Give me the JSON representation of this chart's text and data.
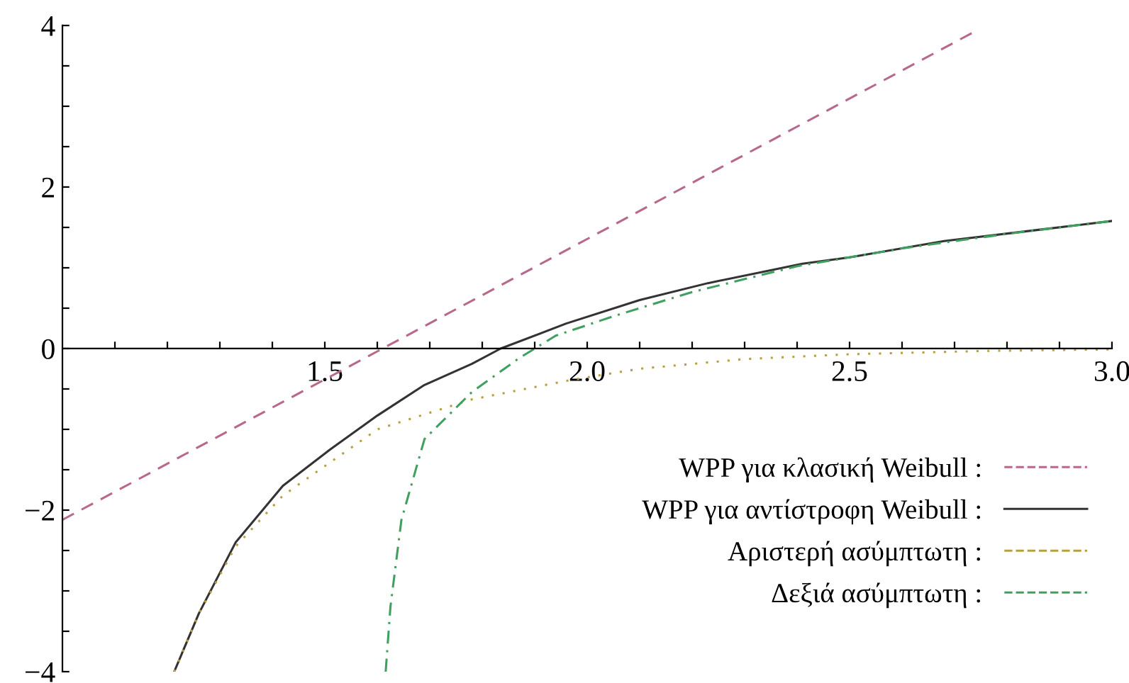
{
  "chart_data": {
    "type": "line",
    "xlim": [
      1,
      3
    ],
    "ylim": [
      -4,
      4
    ],
    "xticks": [
      {
        "value": 1.1,
        "label": null
      },
      {
        "value": 1.2,
        "label": null
      },
      {
        "value": 1.3,
        "label": null
      },
      {
        "value": 1.4,
        "label": null
      },
      {
        "value": 1.5,
        "label": "1.5"
      },
      {
        "value": 1.6,
        "label": null
      },
      {
        "value": 1.7,
        "label": null
      },
      {
        "value": 1.8,
        "label": null
      },
      {
        "value": 1.9,
        "label": null
      },
      {
        "value": 2.0,
        "label": "2.0"
      },
      {
        "value": 2.1,
        "label": null
      },
      {
        "value": 2.2,
        "label": null
      },
      {
        "value": 2.3,
        "label": null
      },
      {
        "value": 2.4,
        "label": null
      },
      {
        "value": 2.5,
        "label": "2.5"
      },
      {
        "value": 2.6,
        "label": null
      },
      {
        "value": 2.7,
        "label": null
      },
      {
        "value": 2.8,
        "label": null
      },
      {
        "value": 2.9,
        "label": null
      },
      {
        "value": 3.0,
        "label": "3.0"
      }
    ],
    "yticks": [
      {
        "value": -4,
        "label": "−4"
      },
      {
        "value": -3.5,
        "label": null
      },
      {
        "value": -3,
        "label": null
      },
      {
        "value": -2.5,
        "label": null
      },
      {
        "value": -2,
        "label": "−2"
      },
      {
        "value": -1.5,
        "label": null
      },
      {
        "value": -1,
        "label": null
      },
      {
        "value": -0.5,
        "label": null
      },
      0,
      {
        "value": 0.5,
        "label": null
      },
      {
        "value": 1,
        "label": null
      },
      {
        "value": 1.5,
        "label": null
      },
      2,
      {
        "value": 2.5,
        "label": null
      },
      {
        "value": 3,
        "label": null
      },
      {
        "value": 3.5,
        "label": null
      },
      4
    ],
    "grid": false,
    "legend": "bottom right",
    "marker": "none",
    "series": [
      {
        "name": "WPP για κλασική Weibull :",
        "color": "#b8688c",
        "line_style": "dashed",
        "x": [
          1.0,
          1.61,
          2.74
        ],
        "values": [
          -2.12,
          0,
          3.93
        ]
      },
      {
        "name": "WPP για αντίστροφη Weibull :",
        "color": "#333333",
        "line_style": "solid",
        "x": [
          1.213,
          1.26,
          1.33,
          1.42,
          1.51,
          1.6,
          1.69,
          1.78,
          1.835,
          1.96,
          2.1,
          2.23,
          2.41,
          2.5,
          2.68,
          2.86,
          3.0
        ],
        "values": [
          -4,
          -3.28,
          -2.4,
          -1.7,
          -1.25,
          -0.83,
          -0.45,
          -0.19,
          0,
          0.31,
          0.6,
          0.81,
          1.05,
          1.13,
          1.33,
          1.47,
          1.58
        ]
      },
      {
        "name": "Αριστερή ασύμπτωτη :",
        "color": "#b8a040",
        "line_style": "dotted",
        "x": [
          1.213,
          1.26,
          1.33,
          1.42,
          1.6,
          1.78,
          1.96,
          2.1,
          2.3,
          2.5,
          2.75,
          3.0
        ],
        "values": [
          -4,
          -3.28,
          -2.45,
          -1.82,
          -1.0,
          -0.63,
          -0.4,
          -0.25,
          -0.13,
          -0.07,
          -0.03,
          -0.01
        ]
      },
      {
        "name": "Δεξιά ασύμπτωτη :",
        "color": "#40a060",
        "line_style": "dashdot",
        "x": [
          1.616,
          1.625,
          1.646,
          1.69,
          1.78,
          1.87,
          1.94,
          2.05,
          2.2,
          2.4,
          2.6,
          2.8,
          3.0
        ],
        "values": [
          -4,
          -3.2,
          -2.12,
          -1.12,
          -0.54,
          -0.12,
          0.16,
          0.4,
          0.7,
          1.02,
          1.24,
          1.42,
          1.58
        ]
      }
    ]
  }
}
